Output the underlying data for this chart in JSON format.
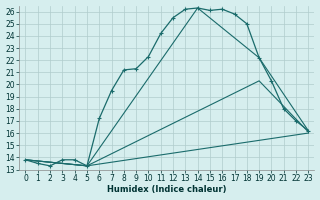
{
  "xlabel": "Humidex (Indice chaleur)",
  "background_color": "#d6eeee",
  "grid_color": "#b0cccc",
  "line_color": "#1a6b6b",
  "xlim": [
    -0.5,
    23.5
  ],
  "ylim": [
    13,
    26.5
  ],
  "yticks": [
    13,
    14,
    15,
    16,
    17,
    18,
    19,
    20,
    21,
    22,
    23,
    24,
    25,
    26
  ],
  "xticks": [
    0,
    1,
    2,
    3,
    4,
    5,
    6,
    7,
    8,
    9,
    10,
    11,
    12,
    13,
    14,
    15,
    16,
    17,
    18,
    19,
    20,
    21,
    22,
    23
  ],
  "series_main": {
    "x": [
      0,
      1,
      2,
      3,
      4,
      5,
      6,
      7,
      8,
      9,
      10,
      11,
      12,
      13,
      14,
      15,
      16,
      17,
      18,
      19,
      20,
      21,
      22,
      23
    ],
    "y": [
      13.8,
      13.5,
      13.3,
      13.8,
      13.8,
      13.3,
      17.2,
      19.5,
      21.2,
      21.3,
      22.3,
      24.2,
      25.5,
      26.2,
      26.3,
      26.1,
      26.2,
      25.8,
      25.0,
      22.2,
      20.3,
      18.0,
      17.0,
      16.2
    ]
  },
  "series_lines": [
    {
      "x": [
        0,
        5,
        14,
        19,
        23
      ],
      "y": [
        13.8,
        13.3,
        26.3,
        22.2,
        16.2
      ]
    },
    {
      "x": [
        0,
        5,
        19,
        23
      ],
      "y": [
        13.8,
        13.3,
        20.3,
        16.1
      ]
    },
    {
      "x": [
        0,
        5,
        23
      ],
      "y": [
        13.8,
        13.3,
        16.0
      ]
    }
  ]
}
